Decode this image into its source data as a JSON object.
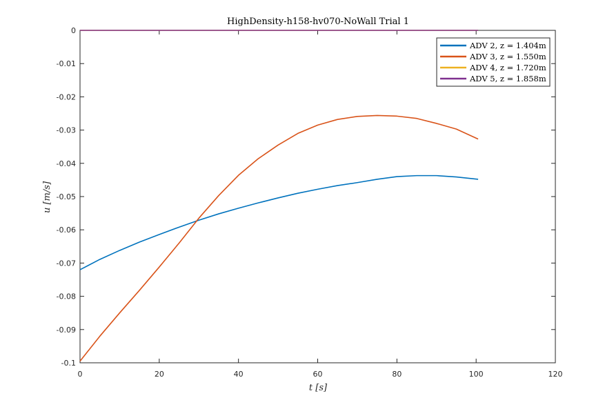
{
  "chart_data": {
    "type": "line",
    "title": "HighDensity-h158-hv070-NoWall Trial 1",
    "xlabel": "t [s]",
    "ylabel": "u [m/s]",
    "xlim": [
      0,
      120
    ],
    "ylim": [
      -0.1,
      0
    ],
    "xticks": [
      0,
      20,
      40,
      60,
      80,
      100,
      120
    ],
    "yticks": [
      0,
      -0.01,
      -0.02,
      -0.03,
      -0.04,
      -0.05,
      -0.06,
      -0.07,
      -0.08,
      -0.09,
      -0.1
    ],
    "xtick_labels": [
      "0",
      "20",
      "40",
      "60",
      "80",
      "100",
      "120"
    ],
    "ytick_labels": [
      "0",
      "-0.01",
      "-0.02",
      "-0.03",
      "-0.04",
      "-0.05",
      "-0.06",
      "-0.07",
      "-0.08",
      "-0.09",
      "-0.1"
    ],
    "grid": false,
    "legend_position": "top-right",
    "series": [
      {
        "name": "ADV 2, z = 1.404m",
        "color": "#0072BD",
        "x": [
          0,
          5,
          10,
          15,
          20,
          25,
          30,
          35,
          40,
          45,
          50,
          55,
          60,
          65,
          70,
          75,
          80,
          85,
          90,
          95,
          100.5
        ],
        "y": [
          -0.072,
          -0.0689,
          -0.0662,
          -0.0637,
          -0.0614,
          -0.0592,
          -0.0571,
          -0.0552,
          -0.0535,
          -0.0519,
          -0.0504,
          -0.049,
          -0.0478,
          -0.0467,
          -0.0458,
          -0.0448,
          -0.044,
          -0.0437,
          -0.0437,
          -0.0441,
          -0.0448
        ]
      },
      {
        "name": "ADV 3, z = 1.550m",
        "color": "#D95319",
        "x": [
          0,
          5,
          10,
          15,
          20,
          25,
          30,
          35,
          40,
          45,
          50,
          55,
          60,
          65,
          70,
          75,
          80,
          85,
          90,
          95,
          100.5
        ],
        "y": [
          -0.0995,
          -0.092,
          -0.085,
          -0.0782,
          -0.0712,
          -0.064,
          -0.0565,
          -0.0497,
          -0.0436,
          -0.0386,
          -0.0345,
          -0.031,
          -0.0285,
          -0.0268,
          -0.0259,
          -0.0256,
          -0.0258,
          -0.0265,
          -0.028,
          -0.0297,
          -0.0327
        ]
      },
      {
        "name": "ADV 4, z = 1.720m",
        "color": "#EDB120",
        "x": [
          0,
          100.5
        ],
        "y": [
          0,
          0
        ]
      },
      {
        "name": "ADV 5, z = 1.858m",
        "color": "#7E2F8E",
        "x": [
          0,
          100.5
        ],
        "y": [
          0,
          0
        ]
      }
    ]
  }
}
